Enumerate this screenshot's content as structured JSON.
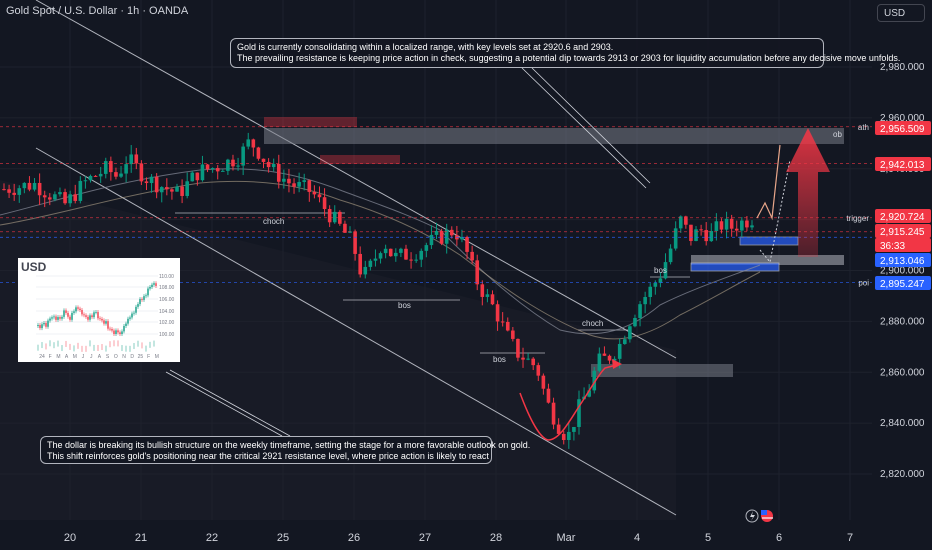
{
  "header": {
    "title": "Gold Spot / U.S. Dollar · 1h · OANDA",
    "currency_button": "USD"
  },
  "annotations": {
    "top_line1": "Gold is currently consolidating within a localized range, with key levels set at 2920.6 and 2903.",
    "top_line2": "The prevailing resistance is keeping price action in check, suggesting a potential dip towards 2913 or 2903 for liquidity accumulation before any decisive move unfolds.",
    "bottom_line1": "The dollar is breaking its bullish structure on the weekly timeframe, setting the stage for a more favorable outlook on gold.",
    "bottom_line2": "This shift reinforces gold's positioning near the critical 2921 resistance level, where price action is likely to react"
  },
  "inset": {
    "title": "USD",
    "y_ticks": [
      "110.00",
      "108.00",
      "106.00",
      "104.00",
      "102.00",
      "100.00"
    ],
    "x_ticks": [
      "24",
      "F",
      "M",
      "A",
      "M",
      "J",
      "J",
      "A",
      "S",
      "O",
      "N",
      "D",
      "25",
      "F",
      "M"
    ]
  },
  "chart_data": {
    "type": "candlestick",
    "symbol": "Gold Spot / U.S. Dollar",
    "timeframe": "1h",
    "ylim": [
      2805,
      2995
    ],
    "y_ticks": [
      2820,
      2840,
      2860,
      2880,
      2900,
      2920,
      2940,
      2960,
      2980
    ],
    "y_tick_labels": [
      "2,820.000",
      "2,840.000",
      "2,860.000",
      "2,880.000",
      "2,900.000",
      "2,920.000",
      "2,940.000",
      "2,960.000",
      "2,980.000"
    ],
    "x_tick_labels": [
      "20",
      "21",
      "22",
      "25",
      "26",
      "27",
      "28",
      "Mar",
      "4",
      "5",
      "6",
      "7"
    ],
    "close_path": [
      [
        0,
        2932
      ],
      [
        3,
        2934
      ],
      [
        6,
        2926
      ],
      [
        8,
        2935
      ],
      [
        10,
        2940
      ],
      [
        11,
        2937
      ],
      [
        12,
        2944
      ],
      [
        14,
        2936
      ],
      [
        17,
        2930
      ],
      [
        19,
        2939
      ],
      [
        21,
        2941
      ],
      [
        23,
        2945
      ],
      [
        24,
        2951
      ],
      [
        25,
        2946
      ],
      [
        26,
        2940
      ],
      [
        28,
        2934
      ],
      [
        30,
        2931
      ],
      [
        32,
        2921
      ],
      [
        34,
        2911
      ],
      [
        35,
        2897
      ],
      [
        36,
        2903
      ],
      [
        37,
        2912
      ],
      [
        38,
        2905
      ],
      [
        40,
        2907
      ],
      [
        42,
        2912
      ],
      [
        44,
        2916
      ],
      [
        45,
        2909
      ],
      [
        46,
        2897
      ],
      [
        47,
        2890
      ],
      [
        48,
        2884
      ],
      [
        49,
        2875
      ],
      [
        50,
        2868
      ],
      [
        52,
        2862
      ],
      [
        53,
        2848
      ],
      [
        54,
        2840
      ],
      [
        55,
        2834
      ],
      [
        56,
        2845
      ],
      [
        57,
        2853
      ],
      [
        58,
        2864
      ],
      [
        59,
        2866
      ],
      [
        60,
        2870
      ],
      [
        61,
        2880
      ],
      [
        62,
        2887
      ],
      [
        63,
        2892
      ],
      [
        64,
        2898
      ],
      [
        65,
        2908
      ],
      [
        66,
        2920
      ],
      [
        67,
        2913
      ],
      [
        68,
        2916
      ],
      [
        69,
        2914
      ],
      [
        70,
        2918
      ],
      [
        71,
        2917
      ],
      [
        72,
        2919
      ],
      [
        73,
        2920.6
      ]
    ],
    "levels": [
      {
        "label": "ath",
        "price_label": "2,956.509",
        "value": 2956.509,
        "color": "#f23645"
      },
      {
        "label": "",
        "price_label": "2,942.013",
        "value": 2942.013,
        "color": "#f23645"
      },
      {
        "label": "trigger",
        "price_label": "2,920.724",
        "value": 2920.724,
        "color": "#f23645"
      },
      {
        "label": "",
        "price_label": "2,915.245",
        "value": 2915.245,
        "color": "#f23645"
      },
      {
        "label": "",
        "price_label": "2,913.046",
        "value": 2913.046,
        "color": "#2962ff"
      },
      {
        "label": "poi",
        "price_label": "2,895.247",
        "value": 2895.247,
        "color": "#2962ff"
      }
    ],
    "countdown": "36:33",
    "structure_labels": [
      "choch",
      "bos",
      "bos",
      "choch",
      "bos",
      "ob"
    ],
    "colors": {
      "up": "#089981",
      "down": "#f23645",
      "background": "#131722",
      "grid": "#1e222d"
    }
  }
}
